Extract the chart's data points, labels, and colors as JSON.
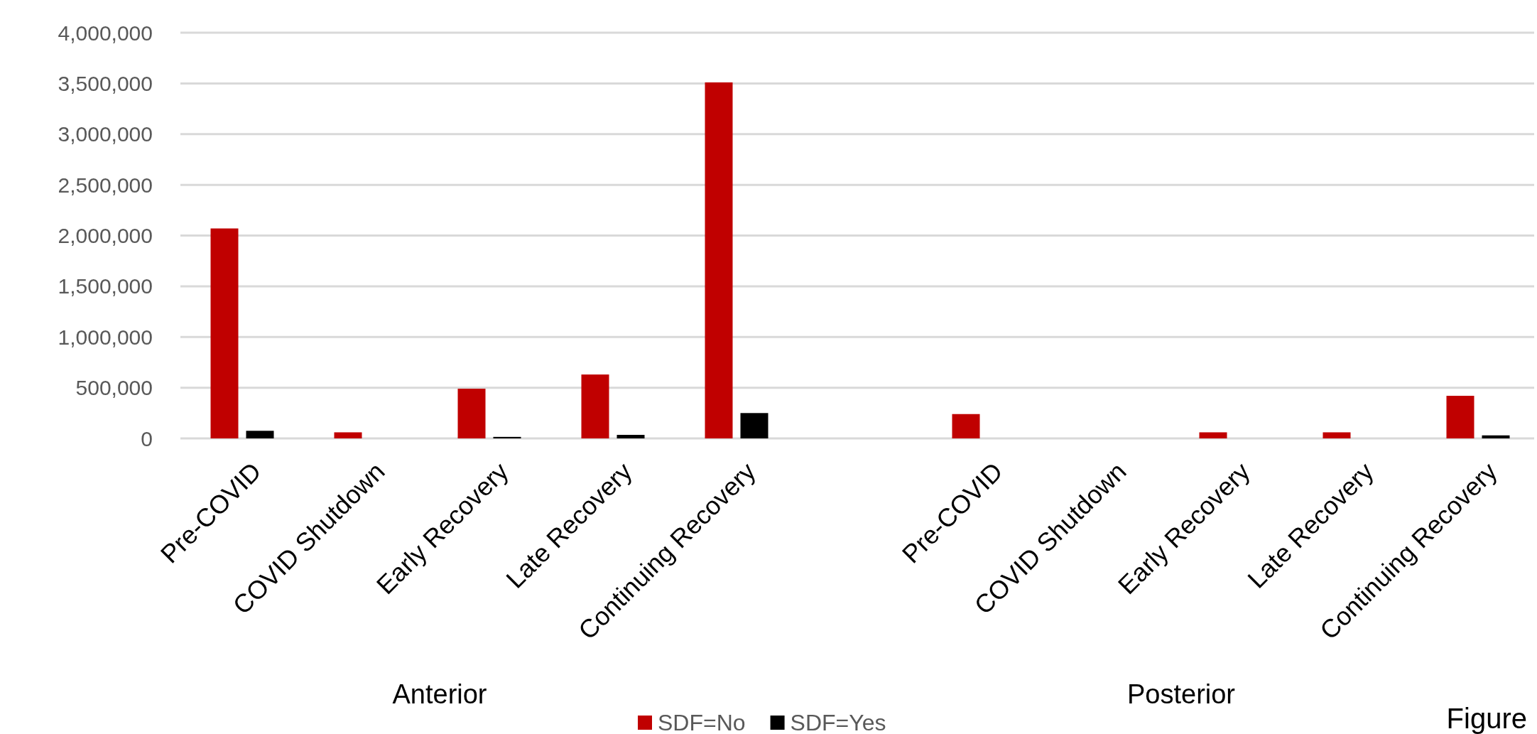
{
  "chart_data": {
    "type": "bar",
    "categories": [
      "Pre-COVID",
      "COVID Shutdown",
      "Early Recovery",
      "Late Recovery",
      "Continuing Recovery",
      null,
      "Pre-COVID",
      "COVID Shutdown",
      "Early Recovery",
      "Late Recovery",
      "Continuing Recovery"
    ],
    "series": [
      {
        "name": "SDF=No",
        "color": "#c00000",
        "values": [
          2070000,
          60000,
          490000,
          630000,
          3510000,
          null,
          240000,
          0,
          60000,
          60000,
          420000
        ]
      },
      {
        "name": "SDF=Yes",
        "color": "#000000",
        "values": [
          75000,
          0,
          15000,
          35000,
          250000,
          null,
          0,
          0,
          0,
          0,
          30000
        ]
      }
    ],
    "ylim": [
      0,
      4000000
    ],
    "yticks": [
      {
        "value": 0,
        "label": "0"
      },
      {
        "value": 500000,
        "label": "500,000"
      },
      {
        "value": 1000000,
        "label": "1,000,000"
      },
      {
        "value": 1500000,
        "label": "1,500,000"
      },
      {
        "value": 2000000,
        "label": "2,000,000"
      },
      {
        "value": 2500000,
        "label": "2,500,000"
      },
      {
        "value": 3000000,
        "label": "3,000,000"
      },
      {
        "value": 3500000,
        "label": "3,500,000"
      },
      {
        "value": 4000000,
        "label": "4,000,000"
      }
    ],
    "grid": "y",
    "legend": "bottom",
    "annotations": [
      "Anterior",
      "Posterior",
      "Figure"
    ]
  }
}
